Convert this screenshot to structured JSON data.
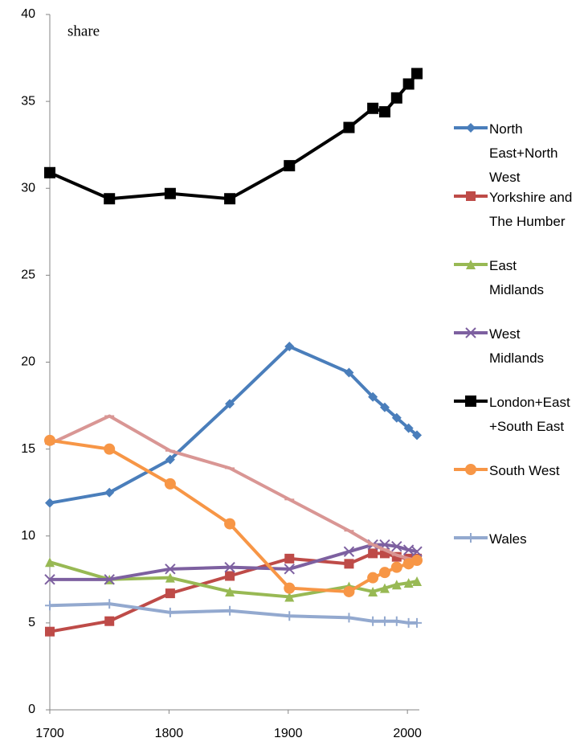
{
  "chart_data": {
    "type": "line",
    "annotation": "share",
    "x": [
      1700,
      1750,
      1801,
      1851,
      1901,
      1951,
      1971,
      1981,
      1991,
      2001,
      2008
    ],
    "xlim": [
      1700,
      2010
    ],
    "xticks": [
      1700,
      1800,
      1900,
      2000
    ],
    "ylim": [
      0,
      40
    ],
    "yticks": [
      0,
      5,
      10,
      15,
      20,
      25,
      30,
      35,
      40
    ],
    "grid": false,
    "legend": "right",
    "series": [
      {
        "name": "North East+North West",
        "color": "#4a7ebb",
        "marker": "diamond",
        "values": [
          11.9,
          12.5,
          14.4,
          17.6,
          20.9,
          19.4,
          18.0,
          17.4,
          16.8,
          16.2,
          15.8
        ]
      },
      {
        "name": "Yorkshire and The Humber",
        "color": "#be4b48",
        "marker": "square",
        "values": [
          4.5,
          5.1,
          6.7,
          7.7,
          8.7,
          8.4,
          9.0,
          9.0,
          8.8,
          8.7,
          8.7
        ]
      },
      {
        "name": "East Midlands",
        "color": "#98b954",
        "marker": "triangle",
        "values": [
          8.5,
          7.5,
          7.6,
          6.8,
          6.5,
          7.1,
          6.8,
          7.0,
          7.2,
          7.3,
          7.4
        ]
      },
      {
        "name": "West Midlands",
        "color": "#7d60a0",
        "marker": "x",
        "values": [
          7.5,
          7.5,
          8.1,
          8.2,
          8.1,
          9.1,
          9.5,
          9.5,
          9.4,
          9.2,
          9.1
        ]
      },
      {
        "name": "London+East +South East",
        "color": "#000000",
        "marker": "square",
        "values": [
          30.9,
          29.4,
          29.7,
          29.4,
          31.3,
          33.5,
          34.6,
          34.4,
          35.2,
          36.0,
          36.6
        ]
      },
      {
        "color": "#d99694",
        "marker": "dash",
        "values": [
          15.3,
          16.9,
          14.9,
          13.9,
          12.1,
          10.3,
          9.5,
          9.2,
          8.9,
          8.7,
          8.6
        ]
      },
      {
        "name": "South West",
        "color": "#f79646",
        "marker": "circle",
        "values": [
          15.5,
          15.0,
          13.0,
          10.7,
          7.0,
          6.8,
          7.6,
          7.9,
          8.2,
          8.4,
          8.6
        ]
      },
      {
        "name": "Wales",
        "color": "#93a9cf",
        "marker": "plus",
        "values": [
          6.0,
          6.1,
          5.6,
          5.7,
          5.4,
          5.3,
          5.1,
          5.1,
          5.1,
          5.0,
          5.0
        ]
      }
    ]
  }
}
